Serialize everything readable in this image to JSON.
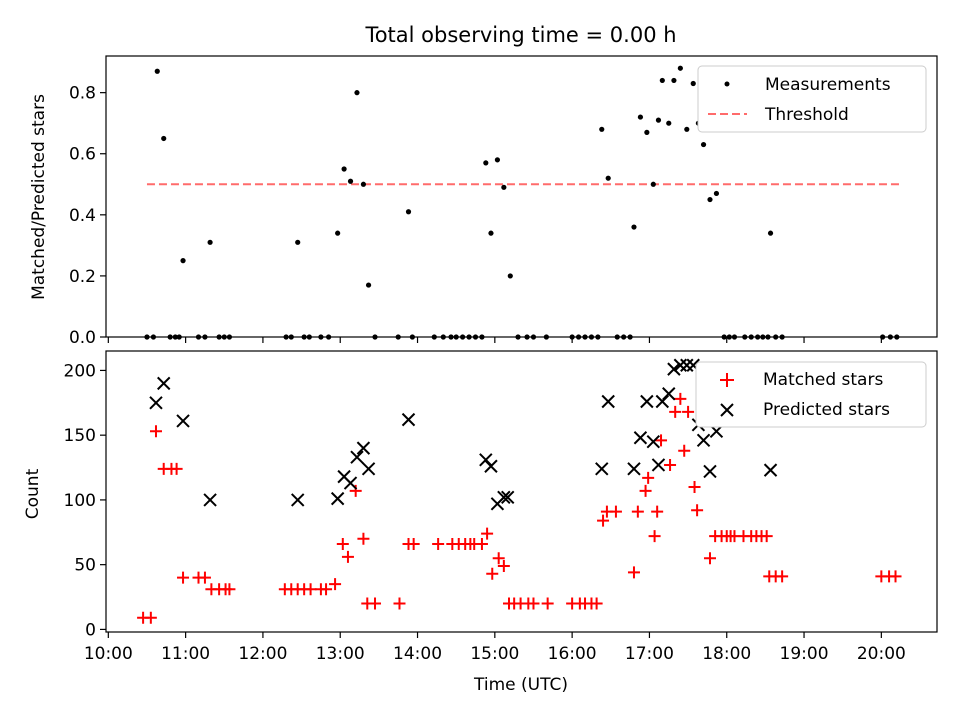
{
  "chart_data": [
    {
      "type": "scatter",
      "title": "Total observing time = 0.00 h",
      "xlabel": "",
      "ylabel": "Matched/Predicted stars",
      "xlim_hours": [
        9.97,
        20.72
      ],
      "ylim": [
        0,
        0.92
      ],
      "yticks": [
        "0.0",
        "0.2",
        "0.4",
        "0.6",
        "0.8"
      ],
      "ytick_values": [
        0,
        0.2,
        0.4,
        0.6,
        0.8
      ],
      "grid": false,
      "legend_position": "upper right",
      "threshold": {
        "value": 0.5,
        "x_range": [
          "10:30",
          "20:15"
        ],
        "color": "#ff6b6b"
      },
      "series": [
        {
          "name": "Measurements",
          "color": "#000000",
          "marker": "dot",
          "points": [
            [
              "10:30",
              0
            ],
            [
              "10:35",
              0
            ],
            [
              "10:38",
              0.87
            ],
            [
              "10:43",
              0.65
            ],
            [
              "10:48",
              0
            ],
            [
              "10:52",
              0
            ],
            [
              "10:55",
              0
            ],
            [
              "10:58",
              0.25
            ],
            [
              "11:10",
              0
            ],
            [
              "11:15",
              0
            ],
            [
              "11:19",
              0.31
            ],
            [
              "11:26",
              0
            ],
            [
              "11:30",
              0
            ],
            [
              "11:34",
              0
            ],
            [
              "12:18",
              0
            ],
            [
              "12:22",
              0
            ],
            [
              "12:27",
              0.31
            ],
            [
              "12:32",
              0
            ],
            [
              "12:36",
              0
            ],
            [
              "12:45",
              0
            ],
            [
              "12:51",
              0
            ],
            [
              "12:58",
              0.34
            ],
            [
              "13:03",
              0.55
            ],
            [
              "13:08",
              0.51
            ],
            [
              "13:13",
              0.8
            ],
            [
              "13:18",
              0.5
            ],
            [
              "13:22",
              0.17
            ],
            [
              "13:27",
              0
            ],
            [
              "13:45",
              0
            ],
            [
              "13:53",
              0.41
            ],
            [
              "13:56",
              0
            ],
            [
              "14:13",
              0
            ],
            [
              "14:20",
              0
            ],
            [
              "14:26",
              0
            ],
            [
              "14:30",
              0
            ],
            [
              "14:35",
              0
            ],
            [
              "14:40",
              0
            ],
            [
              "14:45",
              0
            ],
            [
              "14:50",
              0
            ],
            [
              "14:53",
              0.57
            ],
            [
              "14:57",
              0.34
            ],
            [
              "15:02",
              0.58
            ],
            [
              "15:07",
              0.49
            ],
            [
              "15:12",
              0.2
            ],
            [
              "15:18",
              0
            ],
            [
              "15:25",
              0
            ],
            [
              "15:30",
              0
            ],
            [
              "15:40",
              0
            ],
            [
              "16:00",
              0
            ],
            [
              "16:05",
              0
            ],
            [
              "16:10",
              0
            ],
            [
              "16:15",
              0
            ],
            [
              "16:20",
              0
            ],
            [
              "16:23",
              0.68
            ],
            [
              "16:28",
              0.52
            ],
            [
              "16:35",
              0
            ],
            [
              "16:40",
              0
            ],
            [
              "16:45",
              0
            ],
            [
              "16:48",
              0.36
            ],
            [
              "16:53",
              0.72
            ],
            [
              "16:58",
              0.67
            ],
            [
              "17:03",
              0.5
            ],
            [
              "17:07",
              0.71
            ],
            [
              "17:10",
              0.84
            ],
            [
              "17:15",
              0.7
            ],
            [
              "17:19",
              0.84
            ],
            [
              "17:24",
              0.88
            ],
            [
              "17:29",
              0.68
            ],
            [
              "17:34",
              0.83
            ],
            [
              "17:38",
              0.7
            ],
            [
              "17:42",
              0.63
            ],
            [
              "17:47",
              0.45
            ],
            [
              "17:52",
              0.47
            ],
            [
              "17:58",
              0
            ],
            [
              "18:02",
              0
            ],
            [
              "18:06",
              0
            ],
            [
              "18:14",
              0
            ],
            [
              "18:19",
              0
            ],
            [
              "18:24",
              0
            ],
            [
              "18:28",
              0
            ],
            [
              "18:32",
              0
            ],
            [
              "18:34",
              0.34
            ],
            [
              "18:38",
              0
            ],
            [
              "18:43",
              0
            ],
            [
              "20:01",
              0
            ],
            [
              "20:07",
              0
            ],
            [
              "20:12",
              0
            ]
          ]
        },
        {
          "name": "Threshold",
          "color": "#ff6b6b",
          "marker": "dashed-line",
          "points": [
            [
              "10:30",
              0.5
            ],
            [
              "20:15",
              0.5
            ]
          ]
        }
      ]
    },
    {
      "type": "scatter",
      "title": "",
      "xlabel": "Time (UTC)",
      "ylabel": "Count",
      "xlim_hours": [
        9.97,
        20.72
      ],
      "ylim": [
        -2,
        215
      ],
      "yticks": [
        "0",
        "50",
        "100",
        "150",
        "200"
      ],
      "ytick_values": [
        0,
        50,
        100,
        150,
        200
      ],
      "xticks": [
        "10:00",
        "11:00",
        "12:00",
        "13:00",
        "14:00",
        "15:00",
        "16:00",
        "17:00",
        "18:00",
        "19:00",
        "20:00"
      ],
      "xtick_values": [
        "10:00",
        "11:00",
        "12:00",
        "13:00",
        "14:00",
        "15:00",
        "16:00",
        "17:00",
        "18:00",
        "19:00",
        "20:00"
      ],
      "grid": false,
      "legend_position": "upper right",
      "series": [
        {
          "name": "Matched stars",
          "color": "#ff0000",
          "marker": "plus",
          "points": [
            [
              "10:27",
              9
            ],
            [
              "10:33",
              9
            ],
            [
              "10:37",
              153
            ],
            [
              "10:43",
              124
            ],
            [
              "10:49",
              124
            ],
            [
              "10:53",
              124
            ],
            [
              "10:58",
              40
            ],
            [
              "11:10",
              40
            ],
            [
              "11:15",
              40
            ],
            [
              "11:20",
              31
            ],
            [
              "11:26",
              31
            ],
            [
              "11:31",
              31
            ],
            [
              "11:34",
              31
            ],
            [
              "12:17",
              31
            ],
            [
              "12:22",
              31
            ],
            [
              "12:27",
              31
            ],
            [
              "12:32",
              31
            ],
            [
              "12:37",
              31
            ],
            [
              "12:45",
              31
            ],
            [
              "12:49",
              31
            ],
            [
              "12:56",
              35
            ],
            [
              "13:02",
              66
            ],
            [
              "13:06",
              56
            ],
            [
              "13:12",
              107
            ],
            [
              "13:18",
              70
            ],
            [
              "13:21",
              20
            ],
            [
              "13:27",
              20
            ],
            [
              "13:46",
              20
            ],
            [
              "13:53",
              66
            ],
            [
              "13:57",
              66
            ],
            [
              "14:16",
              66
            ],
            [
              "14:27",
              66
            ],
            [
              "14:32",
              66
            ],
            [
              "14:37",
              66
            ],
            [
              "14:41",
              66
            ],
            [
              "14:44",
              66
            ],
            [
              "14:50",
              66
            ],
            [
              "14:54",
              74
            ],
            [
              "14:58",
              43
            ],
            [
              "15:03",
              55
            ],
            [
              "15:07",
              49
            ],
            [
              "15:11",
              20
            ],
            [
              "15:15",
              20
            ],
            [
              "15:20",
              20
            ],
            [
              "15:26",
              20
            ],
            [
              "15:30",
              20
            ],
            [
              "15:41",
              20
            ],
            [
              "16:00",
              20
            ],
            [
              "16:06",
              20
            ],
            [
              "16:10",
              20
            ],
            [
              "16:15",
              20
            ],
            [
              "16:19",
              20
            ],
            [
              "16:24",
              84
            ],
            [
              "16:27",
              91
            ],
            [
              "16:34",
              91
            ],
            [
              "16:48",
              44
            ],
            [
              "16:51",
              91
            ],
            [
              "16:57",
              107
            ],
            [
              "16:59",
              117
            ],
            [
              "17:04",
              72
            ],
            [
              "17:06",
              91
            ],
            [
              "17:09",
              146
            ],
            [
              "17:16",
              127
            ],
            [
              "17:20",
              168
            ],
            [
              "17:24",
              178
            ],
            [
              "17:27",
              138
            ],
            [
              "17:30",
              168
            ],
            [
              "17:35",
              110
            ],
            [
              "17:37",
              92
            ],
            [
              "17:47",
              55
            ],
            [
              "17:51",
              72
            ],
            [
              "17:56",
              72
            ],
            [
              "18:00",
              72
            ],
            [
              "18:03",
              72
            ],
            [
              "18:06",
              72
            ],
            [
              "18:13",
              72
            ],
            [
              "18:19",
              72
            ],
            [
              "18:23",
              72
            ],
            [
              "18:27",
              72
            ],
            [
              "18:31",
              72
            ],
            [
              "18:33",
              41
            ],
            [
              "18:38",
              41
            ],
            [
              "18:43",
              41
            ],
            [
              "20:00",
              41
            ],
            [
              "20:06",
              41
            ],
            [
              "20:11",
              41
            ]
          ]
        },
        {
          "name": "Predicted stars",
          "color": "#000000",
          "marker": "x",
          "points": [
            [
              "10:37",
              175
            ],
            [
              "10:43",
              190
            ],
            [
              "10:58",
              161
            ],
            [
              "11:19",
              100
            ],
            [
              "12:27",
              100
            ],
            [
              "12:58",
              101
            ],
            [
              "13:03",
              118
            ],
            [
              "13:08",
              113
            ],
            [
              "13:13",
              133
            ],
            [
              "13:18",
              140
            ],
            [
              "13:22",
              124
            ],
            [
              "13:53",
              162
            ],
            [
              "14:53",
              131
            ],
            [
              "14:57",
              126
            ],
            [
              "15:02",
              97
            ],
            [
              "15:07",
              102
            ],
            [
              "15:10",
              102
            ],
            [
              "16:23",
              124
            ],
            [
              "16:28",
              176
            ],
            [
              "16:48",
              124
            ],
            [
              "16:53",
              148
            ],
            [
              "16:58",
              176
            ],
            [
              "17:03",
              145
            ],
            [
              "17:07",
              127
            ],
            [
              "17:10",
              176
            ],
            [
              "17:15",
              182
            ],
            [
              "17:19",
              201
            ],
            [
              "17:24",
              204
            ],
            [
              "17:29",
              204
            ],
            [
              "17:34",
              204
            ],
            [
              "17:38",
              158
            ],
            [
              "17:42",
              146
            ],
            [
              "17:47",
              122
            ],
            [
              "17:52",
              153
            ],
            [
              "18:34",
              123
            ]
          ]
        }
      ]
    }
  ]
}
